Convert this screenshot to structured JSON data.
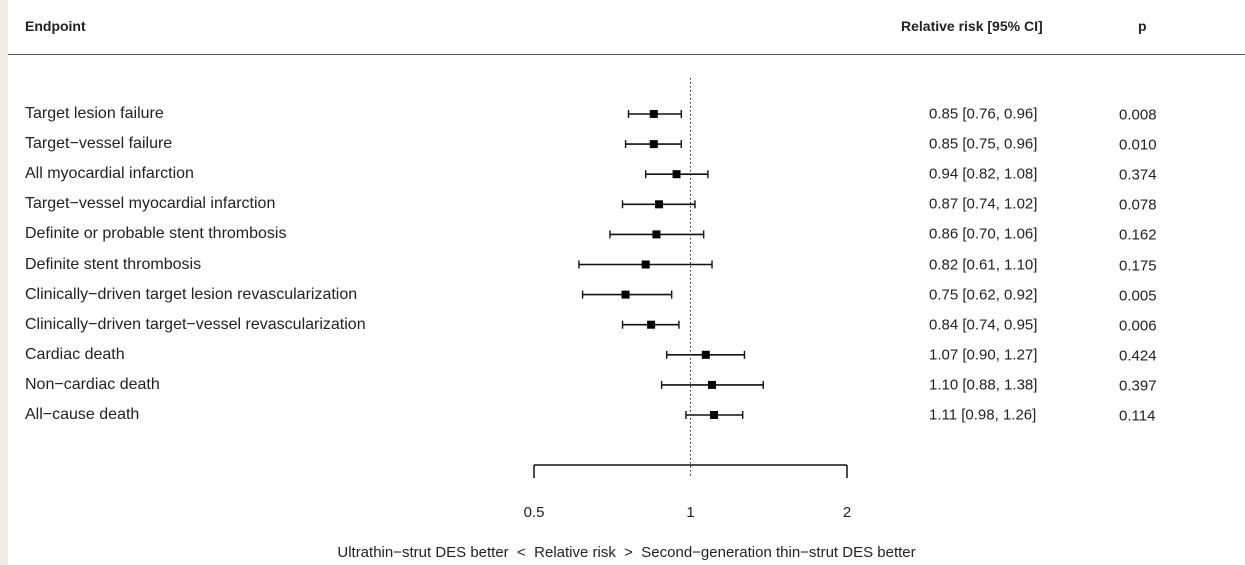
{
  "header": {
    "endpoint_label": "Endpoint",
    "rr_label": "Relative risk [95% CI]",
    "p_label": "p"
  },
  "chart_data": {
    "type": "forest",
    "x_scale": "log",
    "xlim": [
      0.5,
      2
    ],
    "ticks": [
      0.5,
      1,
      2
    ],
    "tick_labels": [
      "0.5",
      "1",
      "2"
    ],
    "reference_line": 1,
    "xlabel_left": "Ultrathin−strut DES better",
    "xlabel_lt": "<",
    "xlabel_center": "Relative risk",
    "xlabel_gt": ">",
    "xlabel_right": "Second−generation thin−strut DES better",
    "rows": [
      {
        "label": "Target lesion failure",
        "rr": 0.85,
        "lo": 0.76,
        "hi": 0.96,
        "ci_text": "0.85 [0.76, 0.96]",
        "p": "0.008"
      },
      {
        "label": "Target−vessel failure",
        "rr": 0.85,
        "lo": 0.75,
        "hi": 0.96,
        "ci_text": "0.85 [0.75, 0.96]",
        "p": "0.010"
      },
      {
        "label": "All myocardial infarction",
        "rr": 0.94,
        "lo": 0.82,
        "hi": 1.08,
        "ci_text": "0.94 [0.82, 1.08]",
        "p": "0.374"
      },
      {
        "label": "Target−vessel myocardial infarction",
        "rr": 0.87,
        "lo": 0.74,
        "hi": 1.02,
        "ci_text": "0.87 [0.74, 1.02]",
        "p": "0.078"
      },
      {
        "label": "Definite or probable stent thrombosis",
        "rr": 0.86,
        "lo": 0.7,
        "hi": 1.06,
        "ci_text": "0.86 [0.70, 1.06]",
        "p": "0.162"
      },
      {
        "label": "Definite stent thrombosis",
        "rr": 0.82,
        "lo": 0.61,
        "hi": 1.1,
        "ci_text": "0.82 [0.61, 1.10]",
        "p": "0.175"
      },
      {
        "label": "Clinically−driven target lesion revascularization",
        "rr": 0.75,
        "lo": 0.62,
        "hi": 0.92,
        "ci_text": "0.75 [0.62, 0.92]",
        "p": "0.005"
      },
      {
        "label": "Clinically−driven target−vessel revascularization",
        "rr": 0.84,
        "lo": 0.74,
        "hi": 0.95,
        "ci_text": "0.84 [0.74, 0.95]",
        "p": "0.006"
      },
      {
        "label": "Cardiac death",
        "rr": 1.07,
        "lo": 0.9,
        "hi": 1.27,
        "ci_text": "1.07 [0.90, 1.27]",
        "p": "0.424"
      },
      {
        "label": "Non−cardiac death",
        "rr": 1.1,
        "lo": 0.88,
        "hi": 1.38,
        "ci_text": "1.10 [0.88, 1.38]",
        "p": "0.397"
      },
      {
        "label": "All−cause death",
        "rr": 1.11,
        "lo": 0.98,
        "hi": 1.26,
        "ci_text": "1.11 [0.98, 1.26]",
        "p": "0.114"
      }
    ]
  }
}
